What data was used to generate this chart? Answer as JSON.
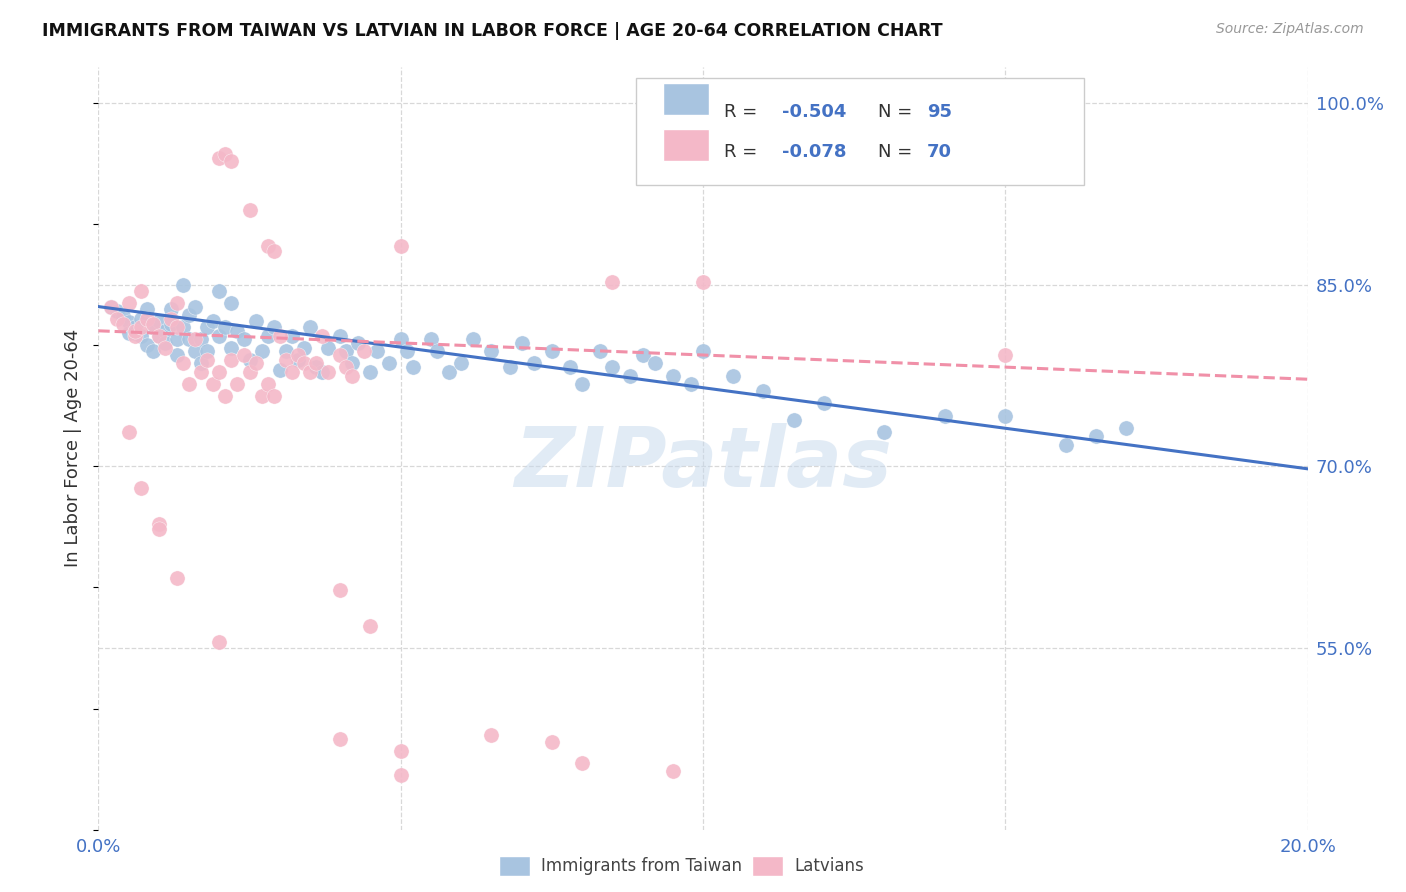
{
  "title": "IMMIGRANTS FROM TAIWAN VS LATVIAN IN LABOR FORCE | AGE 20-64 CORRELATION CHART",
  "source": "Source: ZipAtlas.com",
  "ylabel": "In Labor Force | Age 20-64",
  "xlim": [
    0.0,
    0.2
  ],
  "ylim": [
    0.4,
    1.03
  ],
  "xtick_positions": [
    0.0,
    0.05,
    0.1,
    0.15,
    0.2
  ],
  "xtick_labels": [
    "0.0%",
    "",
    "",
    "",
    "20.0%"
  ],
  "ytick_labels_right": [
    "100.0%",
    "85.0%",
    "70.0%",
    "55.0%"
  ],
  "ytick_values_right": [
    1.0,
    0.85,
    0.7,
    0.55
  ],
  "taiwan_color": "#a8c4e0",
  "latvian_color": "#f4b8c8",
  "taiwan_line_color": "#4472c4",
  "latvian_line_color": "#f090a8",
  "blue_text_color": "#4472c4",
  "dark_text_color": "#333333",
  "background_color": "#ffffff",
  "grid_color": "#d8d8d8",
  "watermark": "ZIPatlas",
  "taiwan_scatter_x": [
    0.002,
    0.003,
    0.004,
    0.005,
    0.005,
    0.006,
    0.006,
    0.007,
    0.007,
    0.008,
    0.008,
    0.009,
    0.009,
    0.01,
    0.01,
    0.011,
    0.011,
    0.012,
    0.012,
    0.013,
    0.013,
    0.014,
    0.014,
    0.015,
    0.015,
    0.016,
    0.016,
    0.017,
    0.017,
    0.018,
    0.018,
    0.019,
    0.02,
    0.02,
    0.021,
    0.022,
    0.022,
    0.023,
    0.024,
    0.025,
    0.026,
    0.027,
    0.028,
    0.029,
    0.03,
    0.031,
    0.032,
    0.033,
    0.034,
    0.035,
    0.036,
    0.037,
    0.038,
    0.04,
    0.041,
    0.042,
    0.043,
    0.045,
    0.046,
    0.048,
    0.05,
    0.051,
    0.052,
    0.055,
    0.056,
    0.058,
    0.06,
    0.062,
    0.065,
    0.068,
    0.07,
    0.072,
    0.075,
    0.078,
    0.08,
    0.083,
    0.085,
    0.088,
    0.09,
    0.092,
    0.095,
    0.098,
    0.1,
    0.105,
    0.11,
    0.115,
    0.12,
    0.13,
    0.14,
    0.15,
    0.16,
    0.165,
    0.17
  ],
  "taiwan_scatter_y": [
    0.832,
    0.828,
    0.824,
    0.819,
    0.81,
    0.815,
    0.81,
    0.808,
    0.822,
    0.83,
    0.8,
    0.815,
    0.795,
    0.82,
    0.808,
    0.812,
    0.802,
    0.818,
    0.83,
    0.805,
    0.792,
    0.815,
    0.85,
    0.805,
    0.825,
    0.832,
    0.795,
    0.785,
    0.805,
    0.795,
    0.815,
    0.82,
    0.808,
    0.845,
    0.815,
    0.798,
    0.835,
    0.812,
    0.805,
    0.788,
    0.82,
    0.795,
    0.808,
    0.815,
    0.78,
    0.795,
    0.808,
    0.788,
    0.798,
    0.815,
    0.782,
    0.778,
    0.798,
    0.808,
    0.795,
    0.785,
    0.802,
    0.778,
    0.795,
    0.785,
    0.805,
    0.795,
    0.782,
    0.805,
    0.795,
    0.778,
    0.785,
    0.805,
    0.795,
    0.782,
    0.802,
    0.785,
    0.795,
    0.782,
    0.768,
    0.795,
    0.782,
    0.775,
    0.792,
    0.785,
    0.775,
    0.768,
    0.795,
    0.775,
    0.762,
    0.738,
    0.752,
    0.728,
    0.742,
    0.742,
    0.718,
    0.725,
    0.732
  ],
  "latvian_scatter_x": [
    0.002,
    0.003,
    0.004,
    0.005,
    0.006,
    0.006,
    0.007,
    0.007,
    0.008,
    0.009,
    0.01,
    0.011,
    0.012,
    0.013,
    0.013,
    0.014,
    0.015,
    0.016,
    0.017,
    0.018,
    0.019,
    0.02,
    0.021,
    0.022,
    0.023,
    0.024,
    0.025,
    0.026,
    0.027,
    0.028,
    0.029,
    0.03,
    0.031,
    0.032,
    0.033,
    0.034,
    0.035,
    0.036,
    0.037,
    0.038,
    0.04,
    0.041,
    0.042,
    0.044,
    0.02,
    0.021,
    0.022,
    0.025,
    0.028,
    0.029,
    0.05,
    0.085,
    0.1,
    0.15,
    0.005,
    0.007,
    0.01,
    0.013,
    0.01,
    0.02,
    0.04,
    0.045,
    0.04,
    0.05,
    0.065,
    0.05,
    0.075,
    0.08,
    0.095
  ],
  "latvian_scatter_y": [
    0.832,
    0.822,
    0.818,
    0.835,
    0.808,
    0.812,
    0.845,
    0.815,
    0.822,
    0.818,
    0.808,
    0.798,
    0.822,
    0.835,
    0.815,
    0.785,
    0.768,
    0.805,
    0.778,
    0.788,
    0.768,
    0.778,
    0.758,
    0.788,
    0.768,
    0.792,
    0.778,
    0.785,
    0.758,
    0.768,
    0.758,
    0.808,
    0.788,
    0.778,
    0.792,
    0.785,
    0.778,
    0.785,
    0.808,
    0.778,
    0.792,
    0.782,
    0.775,
    0.795,
    0.955,
    0.958,
    0.952,
    0.912,
    0.882,
    0.878,
    0.882,
    0.852,
    0.852,
    0.792,
    0.728,
    0.682,
    0.652,
    0.608,
    0.648,
    0.555,
    0.598,
    0.568,
    0.475,
    0.445,
    0.478,
    0.465,
    0.472,
    0.455,
    0.448
  ],
  "taiwan_trendline_x": [
    0.0,
    0.2
  ],
  "taiwan_trendline_y": [
    0.832,
    0.698
  ],
  "latvian_trendline_x": [
    0.0,
    0.2
  ],
  "latvian_trendline_y": [
    0.812,
    0.772
  ]
}
